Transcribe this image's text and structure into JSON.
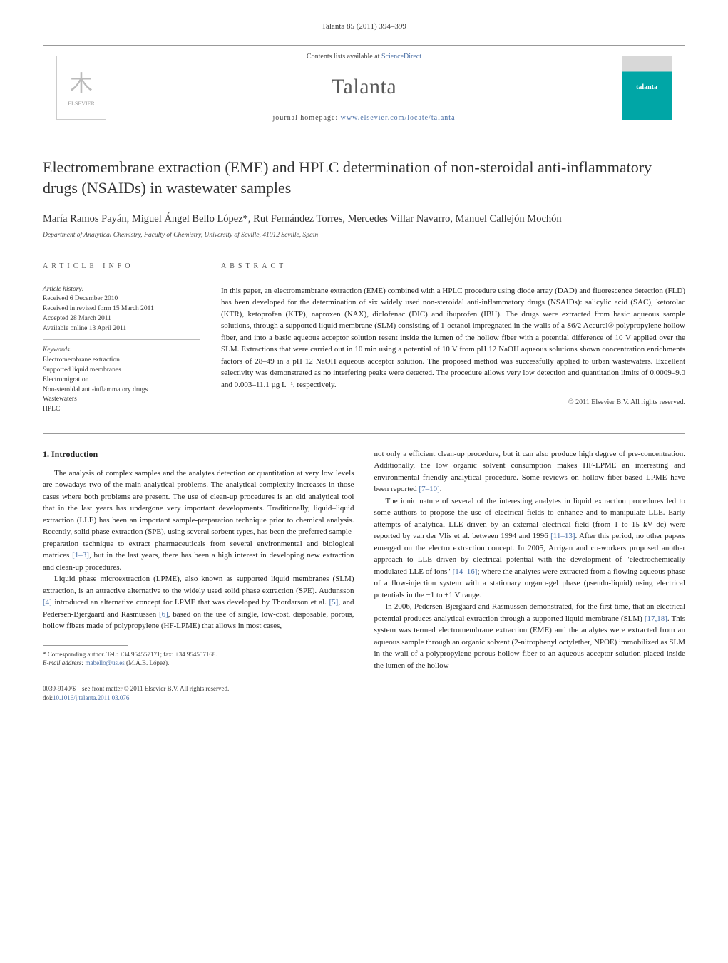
{
  "journal_ref": "Talanta 85 (2011) 394–399",
  "header": {
    "contents_prefix": "Contents lists available at ",
    "contents_link": "ScienceDirect",
    "journal_name": "Talanta",
    "homepage_prefix": "journal homepage: ",
    "homepage_link": "www.elsevier.com/locate/talanta",
    "cover_text": "talanta",
    "elsevier_label": "ELSEVIER"
  },
  "title": "Electromembrane extraction (EME) and HPLC determination of non-steroidal anti-inflammatory drugs (NSAIDs) in wastewater samples",
  "authors": "María Ramos Payán, Miguel Ángel Bello López*, Rut Fernández Torres, Mercedes Villar Navarro, Manuel Callejón Mochón",
  "affiliation": "Department of Analytical Chemistry, Faculty of Chemistry, University of Seville, 41012 Seville, Spain",
  "article_info": {
    "label": "ARTICLE INFO",
    "history_hdr": "Article history:",
    "received": "Received 6 December 2010",
    "revised": "Received in revised form 15 March 2011",
    "accepted": "Accepted 28 March 2011",
    "online": "Available online 13 April 2011",
    "keywords_hdr": "Keywords:",
    "keywords": [
      "Electromembrane extraction",
      "Supported liquid membranes",
      "Electromigration",
      "Non-steroidal anti-inflammatory drugs",
      "Wastewaters",
      "HPLC"
    ]
  },
  "abstract": {
    "label": "ABSTRACT",
    "text": "In this paper, an electromembrane extraction (EME) combined with a HPLC procedure using diode array (DAD) and fluorescence detection (FLD) has been developed for the determination of six widely used non-steroidal anti-inflammatory drugs (NSAIDs): salicylic acid (SAC), ketorolac (KTR), ketoprofen (KTP), naproxen (NAX), diclofenac (DIC) and ibuprofen (IBU). The drugs were extracted from basic aqueous sample solutions, through a supported liquid membrane (SLM) consisting of 1-octanol impregnated in the walls of a S6/2 Accurel® polypropylene hollow fiber, and into a basic aqueous acceptor solution resent inside the lumen of the hollow fiber with a potential difference of 10 V applied over the SLM. Extractions that were carried out in 10 min using a potential of 10 V from pH 12 NaOH aqueous solutions shown concentration enrichments factors of 28–49 in a pH 12 NaOH aqueous acceptor solution. The proposed method was successfully applied to urban wastewaters. Excellent selectivity was demonstrated as no interfering peaks were detected. The procedure allows very low detection and quantitation limits of 0.0009–9.0 and 0.003–11.1 µg L⁻¹, respectively.",
    "copyright": "© 2011 Elsevier B.V. All rights reserved."
  },
  "body": {
    "heading1": "1. Introduction",
    "col1_p1": "The analysis of complex samples and the analytes detection or quantitation at very low levels are nowadays two of the main analytical problems. The analytical complexity increases in those cases where both problems are present. The use of clean-up procedures is an old analytical tool that in the last years has undergone very important developments. Traditionally, liquid–liquid extraction (LLE) has been an important sample-preparation technique prior to chemical analysis. Recently, solid phase extraction (SPE), using several sorbent types, has been the preferred sample-preparation technique to extract pharmaceuticals from several environmental and biological matrices ",
    "col1_p1_ref": "[1–3]",
    "col1_p1_tail": ", but in the last years, there has been a high interest in developing new extraction and clean-up procedures.",
    "col1_p2": "Liquid phase microextraction (LPME), also known as supported liquid membranes (SLM) extraction, is an attractive alternative to the widely used solid phase extraction (SPE). Audunsson ",
    "col1_p2_ref1": "[4]",
    "col1_p2_mid": " introduced an alternative concept for LPME that was developed by Thordarson et al. ",
    "col1_p2_ref2": "[5]",
    "col1_p2_mid2": ", and Pedersen-Bjergaard and Rasmussen ",
    "col1_p2_ref3": "[6]",
    "col1_p2_tail": ", based on the use of single, low-cost, disposable, porous, hollow fibers made of polypropylene (HF-LPME) that allows in most cases,",
    "col2_p1": "not only a efficient clean-up procedure, but it can also produce high degree of pre-concentration. Additionally, the low organic solvent consumption makes HF-LPME an interesting and environmental friendly analytical procedure. Some reviews on hollow fiber-based LPME have been reported ",
    "col2_p1_ref": "[7–10]",
    "col2_p1_tail": ".",
    "col2_p2": "The ionic nature of several of the interesting analytes in liquid extraction procedures led to some authors to propose the use of electrical fields to enhance and to manipulate LLE. Early attempts of analytical LLE driven by an external electrical field (from 1 to 15 kV dc) were reported by van der Vlis et al. between 1994 and 1996 ",
    "col2_p2_ref": "[11–13]",
    "col2_p2_mid": ". After this period, no other papers emerged on the electro extraction concept. In 2005, Arrigan and co-workers proposed another approach to LLE driven by electrical potential with the development of \"electrochemically modulated LLE of ions\" ",
    "col2_p2_ref2": "[14–16]",
    "col2_p2_tail": "; where the analytes were extracted from a flowing aqueous phase of a flow-injection system with a stationary organo-gel phase (pseudo-liquid) using electrical potentials in the −1 to +1 V range.",
    "col2_p3": "In 2006, Pedersen-Bjergaard and Rasmussen demonstrated, for the first time, that an electrical potential produces analytical extraction through a supported liquid membrane (SLM) ",
    "col2_p3_ref": "[17,18]",
    "col2_p3_tail": ". This system was termed electromembrane extraction (EME) and the analytes were extracted from an aqueous sample through an organic solvent (2-nitrophenyl octylether, NPOE) immobilized as SLM in the wall of a polypropylene porous hollow fiber to an aqueous acceptor solution placed inside the lumen of the hollow"
  },
  "footnote": {
    "corresponding": "* Corresponding author. Tel.: +34 954557171; fax: +34 954557168.",
    "email_label": "E-mail address: ",
    "email": "mabello@us.es",
    "email_tail": " (M.Á.B. López)."
  },
  "bottom": {
    "issn": "0039-9140/$ – see front matter © 2011 Elsevier B.V. All rights reserved.",
    "doi_label": "doi:",
    "doi": "10.1016/j.talanta.2011.03.076"
  }
}
